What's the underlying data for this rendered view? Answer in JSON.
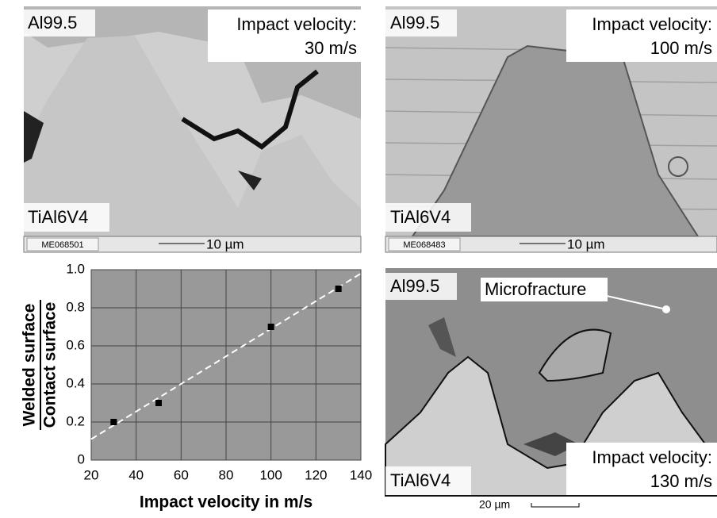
{
  "micrographs": [
    {
      "top_label": "Al99.5",
      "velocity_label": "Impact velocity:",
      "velocity": "30 m/s",
      "bottom_label": "TiAl6V4",
      "id": "ME068501",
      "scale": "10 µm"
    },
    {
      "top_label": "Al99.5",
      "velocity_label": "Impact velocity:",
      "velocity": "100 m/s",
      "bottom_label": "TiAl6V4",
      "id": "ME068483",
      "scale": "10 µm"
    },
    {
      "top_label": "Al99.5",
      "annotation": "Microfracture",
      "velocity_label": "Impact velocity:",
      "velocity": "130 m/s",
      "bottom_label": "TiAl6V4",
      "scale": "20 µm"
    }
  ],
  "chart_data": {
    "type": "scatter",
    "xlabel": "Impact velocity in m/s",
    "ylabel": {
      "numerator": "Welded surface",
      "denominator": "Contact surface"
    },
    "x": [
      30,
      50,
      100,
      130
    ],
    "values": [
      0.2,
      0.3,
      0.7,
      0.9
    ],
    "color": "#000000",
    "trend": {
      "x": [
        20,
        140
      ],
      "values": [
        0.11,
        0.98
      ],
      "color": "#ffffff"
    },
    "xlim": [
      20,
      140
    ],
    "xticks": [
      20,
      40,
      60,
      80,
      100,
      120,
      140
    ],
    "ylim": [
      0,
      1
    ],
    "yticks": [
      0,
      0.2,
      0.4,
      0.6,
      0.8,
      {
        "value": 1,
        "label": "1.0"
      }
    ],
    "grid": true,
    "background": "#999999"
  }
}
